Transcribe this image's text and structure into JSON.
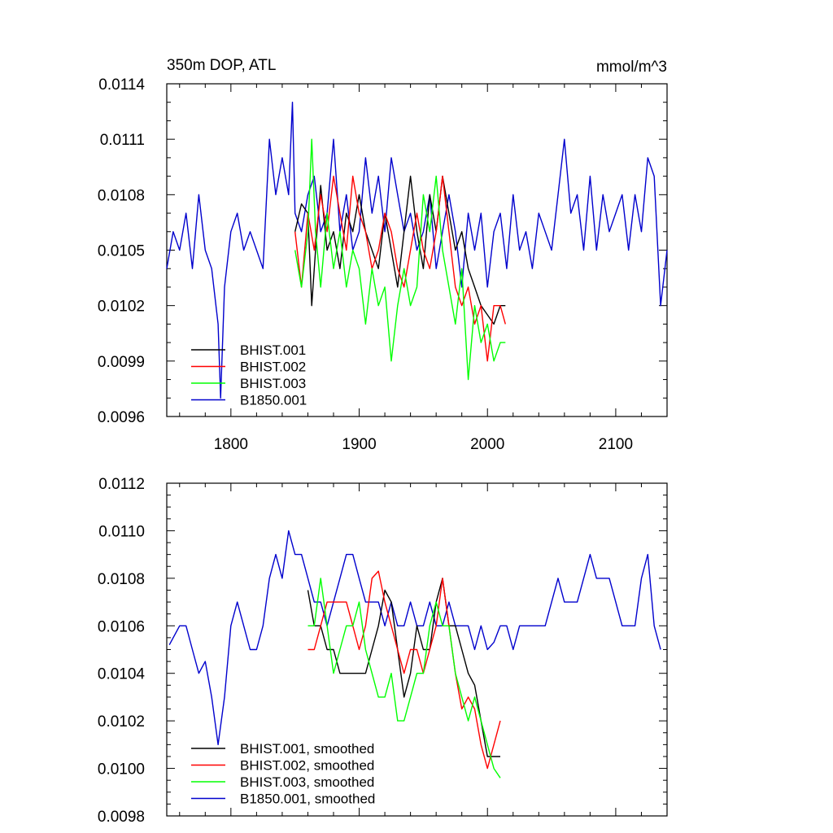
{
  "chart_data": [
    {
      "type": "line",
      "title_left": "350m DOP, ATL",
      "title_right": "mmol/m^3",
      "xlim": [
        1750,
        2140
      ],
      "ylim": [
        0.0096,
        0.0114
      ],
      "xticks": [
        1800,
        1900,
        2000,
        2100
      ],
      "xtick_labels": [
        "1800",
        "1900",
        "2000",
        "2100"
      ],
      "yticks": [
        0.0096,
        0.0099,
        0.0102,
        0.0105,
        0.0108,
        0.0111,
        0.0114
      ],
      "ytick_labels": [
        "0.0096",
        "0.0099",
        "0.0102",
        "0.0105",
        "0.0108",
        "0.0111",
        "0.0114"
      ],
      "legend_position": "bottom-left",
      "series": [
        {
          "name": "BHIST.001",
          "color": "#000000",
          "x": [
            1850,
            1855,
            1860,
            1863,
            1866,
            1870,
            1875,
            1880,
            1885,
            1890,
            1895,
            1900,
            1905,
            1910,
            1915,
            1920,
            1925,
            1930,
            1935,
            1940,
            1945,
            1950,
            1955,
            1960,
            1965,
            1970,
            1975,
            1980,
            1985,
            1990,
            1995,
            2000,
            2005,
            2010,
            2014
          ],
          "y": [
            0.0106,
            0.01075,
            0.0107,
            0.0102,
            0.0105,
            0.01085,
            0.0105,
            0.0106,
            0.0104,
            0.0107,
            0.0106,
            0.0108,
            0.0106,
            0.0105,
            0.0104,
            0.0107,
            0.0105,
            0.0103,
            0.0106,
            0.0109,
            0.0106,
            0.0104,
            0.0108,
            0.0106,
            0.0109,
            0.0107,
            0.0105,
            0.0106,
            0.0104,
            0.0103,
            0.0102,
            0.01015,
            0.0101,
            0.0102,
            0.0102
          ]
        },
        {
          "name": "BHIST.002",
          "color": "#ff0000",
          "x": [
            1850,
            1855,
            1860,
            1865,
            1870,
            1875,
            1880,
            1885,
            1890,
            1895,
            1900,
            1905,
            1910,
            1915,
            1920,
            1925,
            1930,
            1935,
            1940,
            1945,
            1950,
            1955,
            1960,
            1965,
            1970,
            1975,
            1980,
            1985,
            1990,
            1995,
            2000,
            2005,
            2010,
            2014
          ],
          "y": [
            0.0106,
            0.0103,
            0.0107,
            0.0105,
            0.0108,
            0.0106,
            0.0109,
            0.0107,
            0.0105,
            0.0109,
            0.0107,
            0.0106,
            0.0104,
            0.0105,
            0.0107,
            0.0106,
            0.0104,
            0.0103,
            0.0105,
            0.0107,
            0.0105,
            0.0104,
            0.0106,
            0.0109,
            0.0106,
            0.0103,
            0.0102,
            0.0103,
            0.0101,
            0.0102,
            0.0099,
            0.0102,
            0.0102,
            0.0101
          ]
        },
        {
          "name": "BHIST.003",
          "color": "#00ff00",
          "x": [
            1850,
            1855,
            1860,
            1863,
            1866,
            1870,
            1875,
            1880,
            1885,
            1890,
            1895,
            1900,
            1905,
            1910,
            1915,
            1920,
            1925,
            1930,
            1935,
            1940,
            1945,
            1950,
            1955,
            1960,
            1965,
            1970,
            1975,
            1980,
            1985,
            1990,
            1995,
            2000,
            2005,
            2010,
            2014
          ],
          "y": [
            0.0105,
            0.0103,
            0.0106,
            0.0111,
            0.0106,
            0.0103,
            0.0107,
            0.0104,
            0.0106,
            0.0103,
            0.0105,
            0.0104,
            0.0101,
            0.0104,
            0.0102,
            0.0103,
            0.0099,
            0.0102,
            0.0104,
            0.0102,
            0.0103,
            0.0108,
            0.0106,
            0.0109,
            0.0105,
            0.0103,
            0.0101,
            0.0104,
            0.0098,
            0.0102,
            0.01,
            0.0101,
            0.0099,
            0.01,
            0.01
          ]
        },
        {
          "name": "B1850.001",
          "color": "#0000cd",
          "x": [
            1750,
            1755,
            1760,
            1765,
            1770,
            1775,
            1780,
            1785,
            1790,
            1792,
            1795,
            1800,
            1805,
            1810,
            1815,
            1820,
            1825,
            1830,
            1835,
            1840,
            1845,
            1848,
            1850,
            1855,
            1860,
            1865,
            1870,
            1875,
            1880,
            1885,
            1890,
            1895,
            1900,
            1905,
            1910,
            1915,
            1920,
            1925,
            1930,
            1935,
            1940,
            1945,
            1950,
            1955,
            1960,
            1965,
            1970,
            1975,
            1980,
            1985,
            1990,
            1995,
            2000,
            2005,
            2010,
            2015,
            2020,
            2025,
            2030,
            2035,
            2040,
            2045,
            2050,
            2055,
            2060,
            2065,
            2070,
            2075,
            2080,
            2085,
            2090,
            2095,
            2100,
            2105,
            2110,
            2115,
            2120,
            2125,
            2130,
            2135,
            2140
          ],
          "y": [
            0.0104,
            0.0106,
            0.0105,
            0.0107,
            0.0104,
            0.0108,
            0.0105,
            0.0104,
            0.0101,
            0.0097,
            0.0103,
            0.0106,
            0.0107,
            0.0105,
            0.0106,
            0.0105,
            0.0104,
            0.0111,
            0.0108,
            0.011,
            0.0108,
            0.0113,
            0.0107,
            0.0106,
            0.0108,
            0.0109,
            0.0106,
            0.0107,
            0.0111,
            0.0106,
            0.0108,
            0.0105,
            0.0106,
            0.011,
            0.0107,
            0.0109,
            0.0106,
            0.011,
            0.0108,
            0.0106,
            0.0107,
            0.0105,
            0.0106,
            0.0108,
            0.0104,
            0.0106,
            0.0108,
            0.0106,
            0.0103,
            0.0107,
            0.0105,
            0.0107,
            0.0103,
            0.0106,
            0.0107,
            0.0104,
            0.0108,
            0.0105,
            0.0106,
            0.0104,
            0.0107,
            0.0106,
            0.0105,
            0.0108,
            0.0111,
            0.0107,
            0.0108,
            0.0105,
            0.0109,
            0.0105,
            0.0108,
            0.0106,
            0.0107,
            0.0108,
            0.0105,
            0.0108,
            0.0106,
            0.011,
            0.0109,
            0.0102,
            0.0105
          ]
        }
      ]
    },
    {
      "type": "line",
      "xlim": [
        1750,
        2140
      ],
      "ylim": [
        0.0098,
        0.0112
      ],
      "xticks": [
        1800,
        1900,
        2000,
        2100
      ],
      "yticks": [
        0.0098,
        0.01,
        0.0102,
        0.0104,
        0.0106,
        0.0108,
        0.011,
        0.0112
      ],
      "ytick_labels": [
        "0.0098",
        "0.0100",
        "0.0102",
        "0.0104",
        "0.0106",
        "0.0108",
        "0.0110",
        "0.0112"
      ],
      "legend_position": "bottom-left",
      "series": [
        {
          "name": "BHIST.001, smoothed",
          "color": "#000000",
          "x": [
            1860,
            1865,
            1870,
            1875,
            1880,
            1885,
            1890,
            1895,
            1900,
            1905,
            1910,
            1915,
            1920,
            1925,
            1930,
            1935,
            1940,
            1945,
            1950,
            1955,
            1960,
            1965,
            1970,
            1975,
            1980,
            1985,
            1990,
            1995,
            2000,
            2005,
            2010
          ],
          "y": [
            0.01075,
            0.0106,
            0.0106,
            0.0105,
            0.0105,
            0.0104,
            0.0104,
            0.0104,
            0.0104,
            0.0104,
            0.0105,
            0.0106,
            0.01075,
            0.0107,
            0.0105,
            0.0103,
            0.0104,
            0.0106,
            0.0105,
            0.0105,
            0.0107,
            0.0108,
            0.0106,
            0.0106,
            0.0105,
            0.0104,
            0.01035,
            0.0102,
            0.01005,
            0.01005,
            0.01005
          ]
        },
        {
          "name": "BHIST.002, smoothed",
          "color": "#ff0000",
          "x": [
            1860,
            1865,
            1870,
            1875,
            1880,
            1885,
            1890,
            1895,
            1900,
            1905,
            1910,
            1915,
            1920,
            1925,
            1930,
            1935,
            1940,
            1945,
            1950,
            1955,
            1960,
            1965,
            1970,
            1975,
            1980,
            1985,
            1990,
            1995,
            2000,
            2005,
            2010
          ],
          "y": [
            0.0105,
            0.0105,
            0.0106,
            0.0107,
            0.0107,
            0.0107,
            0.0107,
            0.0106,
            0.0105,
            0.0106,
            0.0108,
            0.01083,
            0.0107,
            0.0106,
            0.0105,
            0.0104,
            0.0105,
            0.0105,
            0.0104,
            0.0105,
            0.0106,
            0.0108,
            0.0106,
            0.0104,
            0.01025,
            0.0103,
            0.01025,
            0.0101,
            0.01,
            0.0101,
            0.0102
          ]
        },
        {
          "name": "BHIST.003, smoothed",
          "color": "#00ff00",
          "x": [
            1860,
            1865,
            1870,
            1875,
            1880,
            1885,
            1890,
            1895,
            1900,
            1905,
            1910,
            1915,
            1920,
            1925,
            1930,
            1935,
            1940,
            1945,
            1950,
            1955,
            1960,
            1965,
            1970,
            1975,
            1980,
            1985,
            1990,
            1995,
            2000,
            2005,
            2010
          ],
          "y": [
            0.0106,
            0.0106,
            0.0108,
            0.0106,
            0.0104,
            0.0105,
            0.0106,
            0.0106,
            0.0107,
            0.0105,
            0.0104,
            0.0103,
            0.0103,
            0.0104,
            0.0102,
            0.0102,
            0.0103,
            0.0104,
            0.0104,
            0.0106,
            0.0107,
            0.0106,
            0.0106,
            0.0104,
            0.0103,
            0.0102,
            0.0103,
            0.0102,
            0.0101,
            0.01,
            0.00996
          ]
        },
        {
          "name": "B1850.001, smoothed",
          "color": "#0000cd",
          "x": [
            1752,
            1760,
            1765,
            1770,
            1775,
            1780,
            1785,
            1790,
            1795,
            1800,
            1805,
            1810,
            1815,
            1820,
            1825,
            1830,
            1835,
            1840,
            1845,
            1850,
            1855,
            1860,
            1865,
            1870,
            1875,
            1880,
            1885,
            1890,
            1895,
            1900,
            1905,
            1910,
            1915,
            1920,
            1925,
            1930,
            1935,
            1940,
            1945,
            1950,
            1955,
            1960,
            1965,
            1970,
            1975,
            1980,
            1985,
            1990,
            1995,
            2000,
            2005,
            2010,
            2015,
            2020,
            2025,
            2030,
            2035,
            2040,
            2045,
            2050,
            2055,
            2060,
            2065,
            2070,
            2075,
            2080,
            2085,
            2090,
            2095,
            2100,
            2105,
            2110,
            2115,
            2120,
            2125,
            2130,
            2135
          ],
          "y": [
            0.01052,
            0.0106,
            0.0106,
            0.0105,
            0.0104,
            0.01045,
            0.0103,
            0.0101,
            0.0103,
            0.0106,
            0.0107,
            0.0106,
            0.0105,
            0.0105,
            0.0106,
            0.0108,
            0.0109,
            0.0108,
            0.011,
            0.0109,
            0.0109,
            0.0108,
            0.0107,
            0.0107,
            0.0106,
            0.0107,
            0.0108,
            0.0109,
            0.0109,
            0.0108,
            0.0107,
            0.0107,
            0.0107,
            0.0106,
            0.0107,
            0.0106,
            0.0106,
            0.0107,
            0.0106,
            0.0106,
            0.0107,
            0.0106,
            0.0106,
            0.0107,
            0.0106,
            0.0106,
            0.0106,
            0.0105,
            0.0106,
            0.0105,
            0.01053,
            0.0106,
            0.0106,
            0.0105,
            0.0106,
            0.0106,
            0.0106,
            0.0106,
            0.0106,
            0.0107,
            0.0108,
            0.0107,
            0.0107,
            0.0107,
            0.0108,
            0.0109,
            0.0108,
            0.0108,
            0.0108,
            0.0107,
            0.0106,
            0.0106,
            0.0106,
            0.0108,
            0.0109,
            0.0106,
            0.0105
          ]
        }
      ]
    }
  ]
}
